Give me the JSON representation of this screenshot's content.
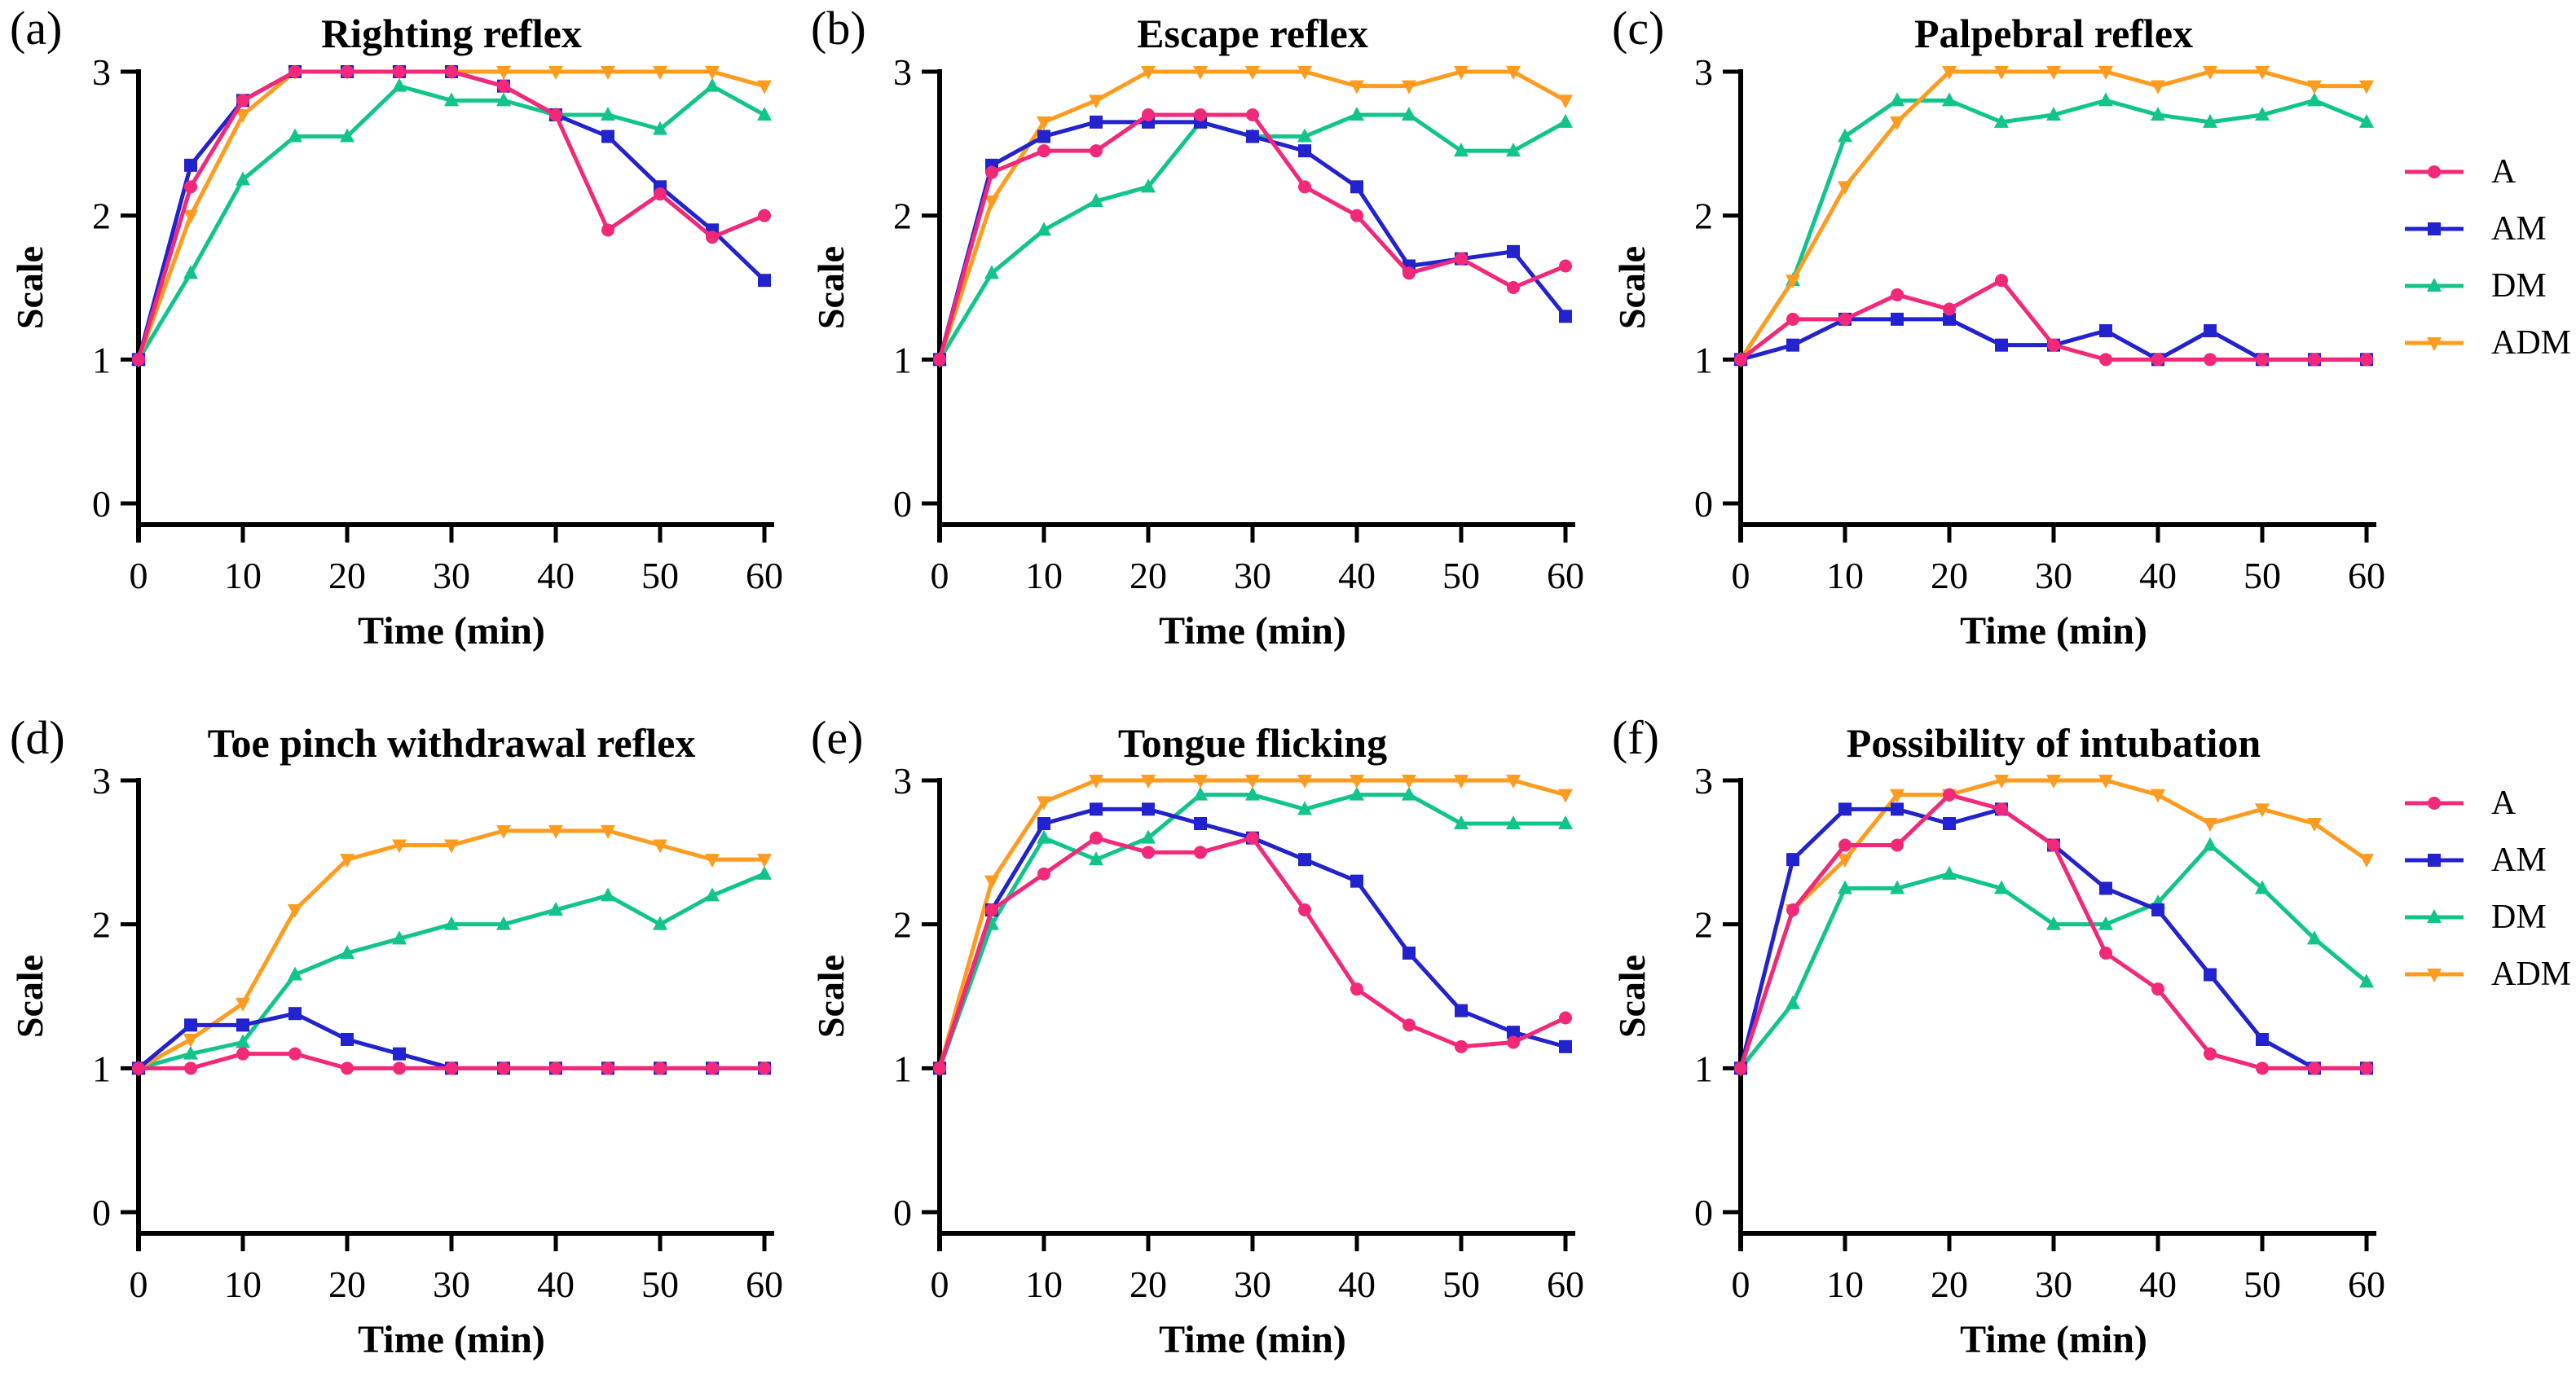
{
  "series_meta": [
    {
      "label": "A",
      "color": "#F32878",
      "marker": "circle"
    },
    {
      "label": "AM",
      "color": "#2222CE",
      "marker": "square"
    },
    {
      "label": "DM",
      "color": "#10C48C",
      "marker": "triangle-up"
    },
    {
      "label": "ADM",
      "color": "#FF9B1E",
      "marker": "triangle-down"
    }
  ],
  "legend": {
    "position": "right",
    "items": [
      "A",
      "AM",
      "DM",
      "ADM"
    ]
  },
  "axis_color": "#000000",
  "chart_data": [
    {
      "type": "line",
      "panel_label": "(a)",
      "title": "Righting reflex",
      "xlabel": "Time (min)",
      "ylabel": "Scale",
      "xlim": [
        0,
        60
      ],
      "ylim": [
        0,
        3
      ],
      "xticks": [
        0,
        10,
        20,
        30,
        40,
        50,
        60
      ],
      "yticks": [
        0,
        1,
        2,
        3
      ],
      "x": [
        0,
        5,
        10,
        15,
        20,
        25,
        30,
        35,
        40,
        45,
        50,
        55,
        60
      ],
      "series": [
        {
          "name": "A",
          "values": [
            1.0,
            2.2,
            2.8,
            3.0,
            3.0,
            3.0,
            3.0,
            2.9,
            2.7,
            1.9,
            2.15,
            1.85,
            2.0
          ]
        },
        {
          "name": "AM",
          "values": [
            1.0,
            2.35,
            2.8,
            3.0,
            3.0,
            3.0,
            3.0,
            2.9,
            2.7,
            2.55,
            2.2,
            1.9,
            1.55
          ]
        },
        {
          "name": "DM",
          "values": [
            1.0,
            1.6,
            2.25,
            2.55,
            2.55,
            2.9,
            2.8,
            2.8,
            2.7,
            2.7,
            2.6,
            2.9,
            2.7
          ]
        },
        {
          "name": "ADM",
          "values": [
            1.0,
            2.0,
            2.7,
            3.0,
            3.0,
            3.0,
            3.0,
            3.0,
            3.0,
            3.0,
            3.0,
            3.0,
            2.9
          ]
        }
      ]
    },
    {
      "type": "line",
      "panel_label": "(b)",
      "title": "Escape reflex",
      "xlabel": "Time (min)",
      "ylabel": "Scale",
      "xlim": [
        0,
        60
      ],
      "ylim": [
        0,
        3
      ],
      "xticks": [
        0,
        10,
        20,
        30,
        40,
        50,
        60
      ],
      "yticks": [
        0,
        1,
        2,
        3
      ],
      "x": [
        0,
        5,
        10,
        15,
        20,
        25,
        30,
        35,
        40,
        45,
        50,
        55,
        60
      ],
      "series": [
        {
          "name": "A",
          "values": [
            1.0,
            2.3,
            2.45,
            2.45,
            2.7,
            2.7,
            2.7,
            2.2,
            2.0,
            1.6,
            1.7,
            1.5,
            1.65
          ]
        },
        {
          "name": "AM",
          "values": [
            1.0,
            2.35,
            2.55,
            2.65,
            2.65,
            2.65,
            2.55,
            2.45,
            2.2,
            1.65,
            1.7,
            1.75,
            1.3
          ]
        },
        {
          "name": "DM",
          "values": [
            1.0,
            1.6,
            1.9,
            2.1,
            2.2,
            2.65,
            2.55,
            2.55,
            2.7,
            2.7,
            2.45,
            2.45,
            2.65
          ]
        },
        {
          "name": "ADM",
          "values": [
            1.0,
            2.1,
            2.65,
            2.8,
            3.0,
            3.0,
            3.0,
            3.0,
            2.9,
            2.9,
            3.0,
            3.0,
            2.8
          ]
        }
      ]
    },
    {
      "type": "line",
      "panel_label": "(c)",
      "title": "Palpebral reflex",
      "xlabel": "Time (min)",
      "ylabel": "Scale",
      "xlim": [
        0,
        60
      ],
      "ylim": [
        0,
        3
      ],
      "xticks": [
        0,
        10,
        20,
        30,
        40,
        50,
        60
      ],
      "yticks": [
        0,
        1,
        2,
        3
      ],
      "x": [
        0,
        5,
        10,
        15,
        20,
        25,
        30,
        35,
        40,
        45,
        50,
        55,
        60
      ],
      "series": [
        {
          "name": "A",
          "values": [
            1.0,
            1.28,
            1.28,
            1.45,
            1.35,
            1.55,
            1.1,
            1.0,
            1.0,
            1.0,
            1.0,
            1.0,
            1.0
          ]
        },
        {
          "name": "AM",
          "values": [
            1.0,
            1.1,
            1.28,
            1.28,
            1.28,
            1.1,
            1.1,
            1.2,
            1.0,
            1.2,
            1.0,
            1.0,
            1.0
          ]
        },
        {
          "name": "DM",
          "values": [
            1.0,
            1.55,
            2.55,
            2.8,
            2.8,
            2.65,
            2.7,
            2.8,
            2.7,
            2.65,
            2.7,
            2.8,
            2.65
          ]
        },
        {
          "name": "ADM",
          "values": [
            1.0,
            1.55,
            2.2,
            2.65,
            3.0,
            3.0,
            3.0,
            3.0,
            2.9,
            3.0,
            3.0,
            2.9,
            2.9
          ]
        }
      ]
    },
    {
      "type": "line",
      "panel_label": "(d)",
      "title": "Toe pinch withdrawal reflex",
      "xlabel": "Time (min)",
      "ylabel": "Scale",
      "xlim": [
        0,
        60
      ],
      "ylim": [
        0,
        3
      ],
      "xticks": [
        0,
        10,
        20,
        30,
        40,
        50,
        60
      ],
      "yticks": [
        0,
        1,
        2,
        3
      ],
      "x": [
        0,
        5,
        10,
        15,
        20,
        25,
        30,
        35,
        40,
        45,
        50,
        55,
        60
      ],
      "series": [
        {
          "name": "A",
          "values": [
            1.0,
            1.0,
            1.1,
            1.1,
            1.0,
            1.0,
            1.0,
            1.0,
            1.0,
            1.0,
            1.0,
            1.0,
            1.0
          ]
        },
        {
          "name": "AM",
          "values": [
            1.0,
            1.3,
            1.3,
            1.38,
            1.2,
            1.1,
            1.0,
            1.0,
            1.0,
            1.0,
            1.0,
            1.0,
            1.0
          ]
        },
        {
          "name": "DM",
          "values": [
            1.0,
            1.1,
            1.18,
            1.65,
            1.8,
            1.9,
            2.0,
            2.0,
            2.1,
            2.2,
            2.0,
            2.2,
            2.35
          ]
        },
        {
          "name": "ADM",
          "values": [
            1.0,
            1.2,
            1.45,
            2.1,
            2.45,
            2.55,
            2.55,
            2.65,
            2.65,
            2.65,
            2.55,
            2.45,
            2.45
          ]
        }
      ]
    },
    {
      "type": "line",
      "panel_label": "(e)",
      "title": "Tongue flicking",
      "xlabel": "Time (min)",
      "ylabel": "Scale",
      "xlim": [
        0,
        60
      ],
      "ylim": [
        0,
        3
      ],
      "xticks": [
        0,
        10,
        20,
        30,
        40,
        50,
        60
      ],
      "yticks": [
        0,
        1,
        2,
        3
      ],
      "x": [
        0,
        5,
        10,
        15,
        20,
        25,
        30,
        35,
        40,
        45,
        50,
        55,
        60
      ],
      "series": [
        {
          "name": "A",
          "values": [
            1.0,
            2.1,
            2.35,
            2.6,
            2.5,
            2.5,
            2.6,
            2.1,
            1.55,
            1.3,
            1.15,
            1.18,
            1.35
          ]
        },
        {
          "name": "AM",
          "values": [
            1.0,
            2.1,
            2.7,
            2.8,
            2.8,
            2.7,
            2.6,
            2.45,
            2.3,
            1.8,
            1.4,
            1.25,
            1.15
          ]
        },
        {
          "name": "DM",
          "values": [
            1.0,
            2.0,
            2.6,
            2.45,
            2.6,
            2.9,
            2.9,
            2.8,
            2.9,
            2.9,
            2.7,
            2.7,
            2.7
          ]
        },
        {
          "name": "ADM",
          "values": [
            1.0,
            2.3,
            2.85,
            3.0,
            3.0,
            3.0,
            3.0,
            3.0,
            3.0,
            3.0,
            3.0,
            3.0,
            2.9
          ]
        }
      ]
    },
    {
      "type": "line",
      "panel_label": "(f)",
      "title": "Possibility of intubation",
      "xlabel": "Time (min)",
      "ylabel": "Scale",
      "xlim": [
        0,
        60
      ],
      "ylim": [
        0,
        3
      ],
      "xticks": [
        0,
        10,
        20,
        30,
        40,
        50,
        60
      ],
      "yticks": [
        0,
        1,
        2,
        3
      ],
      "x": [
        0,
        5,
        10,
        15,
        20,
        25,
        30,
        35,
        40,
        45,
        50,
        55,
        60
      ],
      "series": [
        {
          "name": "A",
          "values": [
            1.0,
            2.1,
            2.55,
            2.55,
            2.9,
            2.8,
            2.55,
            1.8,
            1.55,
            1.1,
            1.0,
            1.0,
            1.0
          ]
        },
        {
          "name": "AM",
          "values": [
            1.0,
            2.45,
            2.8,
            2.8,
            2.7,
            2.8,
            2.55,
            2.25,
            2.1,
            1.65,
            1.2,
            1.0,
            1.0
          ]
        },
        {
          "name": "DM",
          "values": [
            1.0,
            1.45,
            2.25,
            2.25,
            2.35,
            2.25,
            2.0,
            2.0,
            2.15,
            2.55,
            2.25,
            1.9,
            1.6
          ]
        },
        {
          "name": "ADM",
          "values": [
            1.0,
            2.1,
            2.45,
            2.9,
            2.9,
            3.0,
            3.0,
            3.0,
            2.9,
            2.7,
            2.8,
            2.7,
            2.45
          ]
        }
      ]
    }
  ]
}
